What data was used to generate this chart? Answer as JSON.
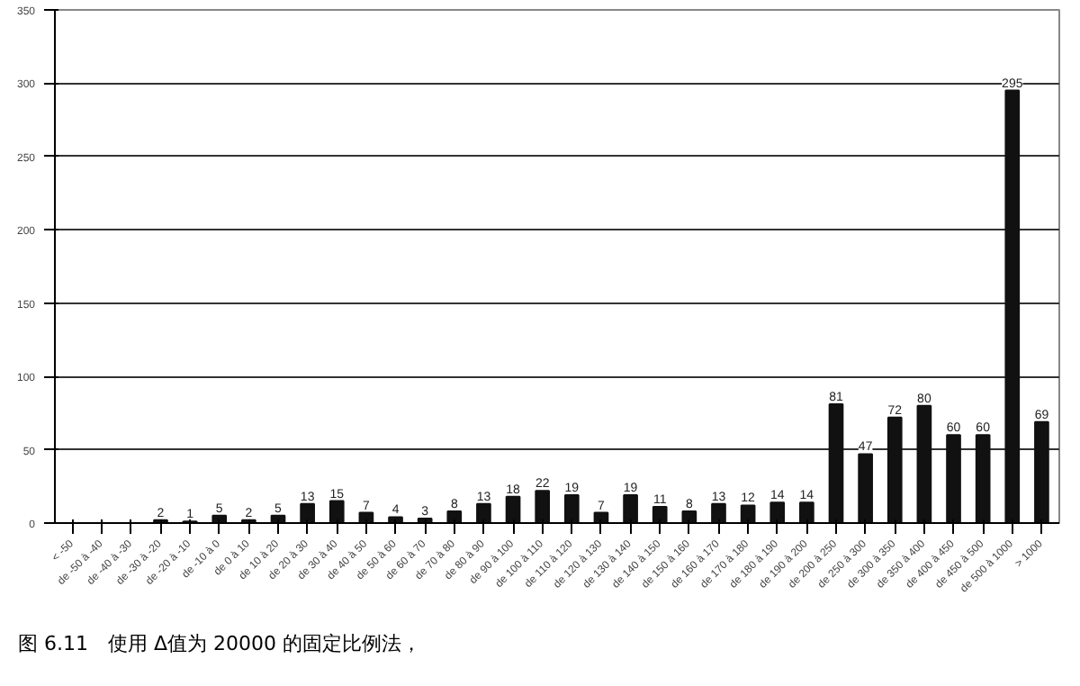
{
  "chart_data": {
    "type": "bar",
    "categories": [
      "< -50",
      "de -50 à -40",
      "de -40 à -30",
      "de -30 à -20",
      "de -20 à -10",
      "de -10 à 0",
      "de 0 à 10",
      "de 10 à 20",
      "de 20 à 30",
      "de 30 à 40",
      "de 40 à 50",
      "de 50 à 60",
      "de 60 à 70",
      "de 70 à 80",
      "de 80 à 90",
      "de 90 à 100",
      "de 100 à 110",
      "de 110 à 120",
      "de 120 à 130",
      "de 130 à 140",
      "de 140 à 150",
      "de 150 à 160",
      "de 160 à 170",
      "de 170 à 180",
      "de 180 à 190",
      "de 190 à 200",
      "de 200 à 250",
      "de 250 à 300",
      "de 300 à 350",
      "de 350 à 400",
      "de 400 à 450",
      "de 450 à 500",
      "de 500 à 1000",
      "> 1000"
    ],
    "values": [
      0,
      0,
      0,
      2,
      1,
      5,
      2,
      5,
      13,
      15,
      7,
      4,
      3,
      8,
      13,
      18,
      22,
      19,
      7,
      19,
      11,
      8,
      13,
      12,
      14,
      14,
      81,
      47,
      72,
      80,
      60,
      60,
      295,
      69
    ],
    "value_labels": [
      null,
      null,
      null,
      "2",
      "1",
      "5",
      "2",
      "5",
      "13",
      "15",
      "7",
      "4",
      "3",
      "8",
      "13",
      "18",
      "22",
      "19",
      "7",
      "19",
      "11",
      "8",
      "13",
      "12",
      "14",
      "14",
      "81",
      "47",
      "72",
      "80",
      "60",
      "60",
      "295",
      "69"
    ],
    "color": "#111111",
    "ylim": [
      0,
      350
    ],
    "yticks": [
      0,
      50,
      100,
      150,
      200,
      250,
      300,
      350
    ],
    "grid": "y",
    "annotations": [
      "图 6.11　使用 Δ值为 20000 的固定比例法，"
    ]
  }
}
